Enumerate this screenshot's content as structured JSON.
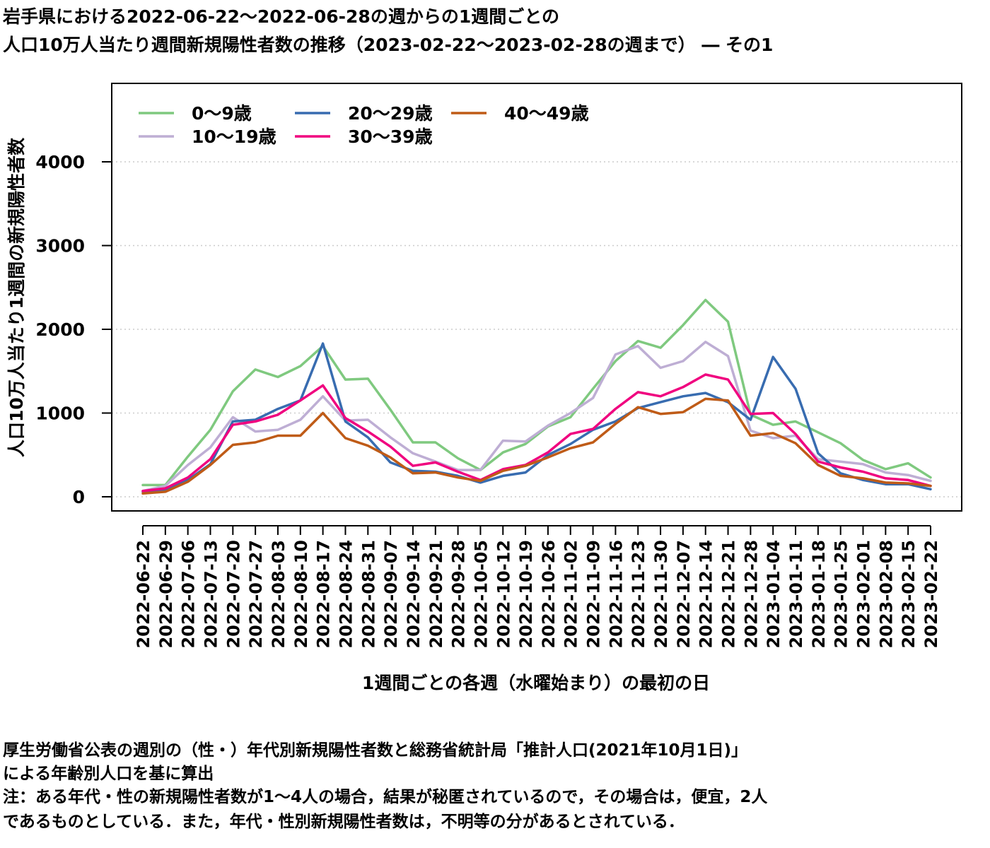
{
  "title_line1": "岩手県における2022-06-22〜2022-06-28の週からの1週間ごとの",
  "title_line2": "人口10万人当たり週間新規陽性者数の推移（2023-02-22〜2023-02-28の週まで） ― その1",
  "notes": [
    "厚生労働省公表の週別の（性・）年代別新規陽性者数と総務省統計局「推計人口(2021年10月1日)」",
    "による年齢別人口を基に算出",
    "注：ある年代・性の新規陽性者数が1〜4人の場合，結果が秘匿されているので，その場合は，便宜，2人",
    "であるものとしている．また，年代・性別新規陽性者数は，不明等の分があるとされている．"
  ],
  "chart_data": {
    "type": "line",
    "xlabel": "1週間ごとの各週（水曜始まり）の最初の日",
    "ylabel": "人口10万人当たり1週間の新規陽性者数",
    "ylim": [
      0,
      4900
    ],
    "yticks": [
      0,
      1000,
      2000,
      3000,
      4000
    ],
    "grid": "horizontal dotted",
    "legend_position": "top-left",
    "categories": [
      "2022-06-22",
      "2022-06-29",
      "2022-07-06",
      "2022-07-13",
      "2022-07-20",
      "2022-07-27",
      "2022-08-03",
      "2022-08-10",
      "2022-08-17",
      "2022-08-24",
      "2022-08-31",
      "2022-09-07",
      "2022-09-14",
      "2022-09-21",
      "2022-09-28",
      "2022-10-05",
      "2022-10-12",
      "2022-10-19",
      "2022-10-26",
      "2022-11-02",
      "2022-11-09",
      "2022-11-16",
      "2022-11-23",
      "2022-11-30",
      "2022-12-07",
      "2022-12-14",
      "2022-12-21",
      "2022-12-28",
      "2023-01-04",
      "2023-01-11",
      "2023-01-18",
      "2023-01-25",
      "2023-02-01",
      "2023-02-08",
      "2023-02-15",
      "2023-02-22"
    ],
    "series": [
      {
        "name": "0〜9歳",
        "color": "#7fc97f",
        "values": [
          140,
          140,
          480,
          800,
          1260,
          1520,
          1430,
          1560,
          1800,
          1400,
          1410,
          1040,
          650,
          650,
          460,
          320,
          530,
          630,
          840,
          950,
          1290,
          1620,
          1860,
          1780,
          2050,
          2350,
          2090,
          980,
          860,
          900,
          770,
          640,
          440,
          330,
          400,
          230
        ]
      },
      {
        "name": "10〜19歳",
        "color": "#beaed4",
        "values": [
          70,
          130,
          380,
          590,
          950,
          780,
          800,
          920,
          1200,
          910,
          920,
          710,
          520,
          420,
          320,
          320,
          670,
          660,
          850,
          1000,
          1180,
          1700,
          1800,
          1540,
          1620,
          1850,
          1680,
          790,
          700,
          730,
          450,
          420,
          390,
          290,
          260,
          190
        ]
      },
      {
        "name": "20〜29歳",
        "color": "#386cb0",
        "values": [
          60,
          80,
          200,
          390,
          900,
          920,
          1050,
          1150,
          1830,
          900,
          710,
          410,
          310,
          300,
          250,
          170,
          250,
          290,
          500,
          630,
          800,
          900,
          1060,
          1130,
          1200,
          1240,
          1130,
          920,
          1670,
          1290,
          520,
          280,
          200,
          150,
          150,
          90
        ]
      },
      {
        "name": "30〜39歳",
        "color": "#f0027f",
        "values": [
          70,
          100,
          230,
          450,
          860,
          900,
          980,
          1150,
          1330,
          940,
          780,
          600,
          370,
          410,
          300,
          200,
          330,
          380,
          530,
          750,
          810,
          1050,
          1250,
          1200,
          1310,
          1460,
          1400,
          990,
          1000,
          750,
          420,
          350,
          300,
          220,
          200,
          130
        ]
      },
      {
        "name": "40〜49歳",
        "color": "#bf5b17",
        "values": [
          40,
          60,
          180,
          380,
          620,
          650,
          730,
          730,
          1000,
          700,
          610,
          470,
          280,
          290,
          230,
          190,
          310,
          370,
          470,
          580,
          650,
          870,
          1070,
          990,
          1010,
          1170,
          1150,
          730,
          760,
          640,
          380,
          250,
          220,
          170,
          160,
          130
        ]
      }
    ]
  }
}
